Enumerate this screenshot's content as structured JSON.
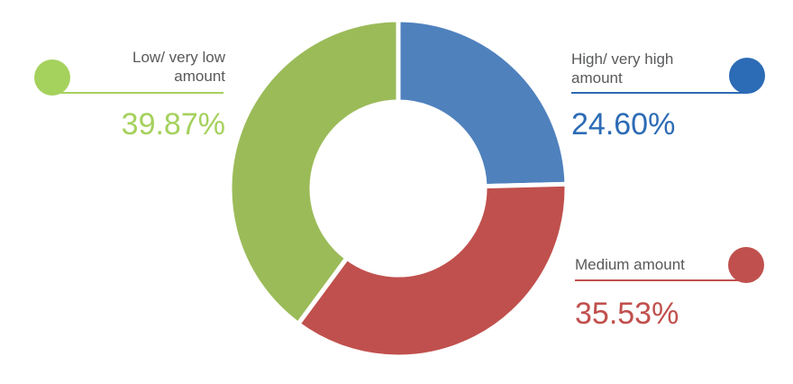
{
  "chart_data": {
    "type": "pie",
    "title": "",
    "series": [
      {
        "name": "High/ very high amount",
        "label_line1": "High/ very high",
        "label_line2": "amount",
        "value": 24.6,
        "display": "24.60%",
        "color": "#4f81bd",
        "dot_color": "#2c6bb5",
        "text_color": "#2c6bb5"
      },
      {
        "name": "Medium amount",
        "label_line1": "Medium amount",
        "label_line2": "",
        "value": 35.53,
        "display": "35.53%",
        "color": "#c0504d",
        "dot_color": "#c0504d",
        "text_color": "#c0504d"
      },
      {
        "name": "Low/ very low amount",
        "label_line1": "Low/ very low",
        "label_line2": "amount",
        "value": 39.87,
        "display": "39.87%",
        "color": "#9bbb59",
        "dot_color": "#a5d15d",
        "text_color": "#a5d15d"
      }
    ],
    "donut": true,
    "legend": "beside-chart"
  }
}
